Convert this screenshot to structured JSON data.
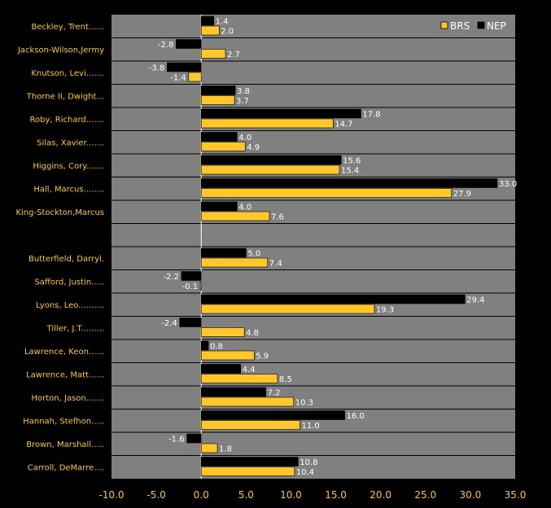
{
  "chart_data": {
    "type": "bar",
    "orientation": "horizontal",
    "categories": [
      "Beckley, Trent......",
      "Jackson-Wilson,Jermy",
      "Knutson, Levi.......",
      "Thorne II, Dwight...",
      "Roby, Richard.......",
      "Silas, Xavier.......",
      "Higgins, Cory.......",
      "Hall, Marcus........",
      "King-Stockton,Marcus",
      "",
      "Butterfield, Darryl.",
      "Safford, Justin.....",
      "Lyons, Leo..........",
      "Tiller, J.T.........",
      "Lawrence, Keon......",
      "Lawrence, Matt......",
      "Horton, Jason.......",
      "Hannah, Stefhon.....",
      "Brown, Marshall.....",
      "Carroll, DeMarre...."
    ],
    "series": [
      {
        "name": "NEP",
        "color": "#000000",
        "values": [
          1.4,
          -2.8,
          -3.8,
          3.8,
          17.8,
          4.0,
          15.6,
          33.0,
          4.0,
          null,
          5.0,
          -2.2,
          29.4,
          -2.4,
          0.8,
          4.4,
          7.2,
          16.0,
          -1.6,
          10.8
        ],
        "labels": [
          "1.4",
          "-2.8",
          "-3.8",
          "3.8",
          "17.8",
          "4.0",
          "15.6",
          "33.0",
          "4.0",
          "",
          "5.0",
          "-2.2",
          "29.4",
          "-2.4",
          "0.8",
          "4.4",
          "7.2",
          "16.0",
          "-1.6",
          "10.8"
        ]
      },
      {
        "name": "BRS",
        "color": "#FFC72C",
        "values": [
          2.0,
          2.7,
          -1.4,
          3.7,
          14.7,
          4.9,
          15.4,
          27.9,
          7.6,
          null,
          7.4,
          -0.1,
          19.3,
          4.8,
          5.9,
          8.5,
          10.3,
          11.0,
          1.8,
          10.4
        ],
        "labels": [
          "2.0",
          "2.7",
          "-1.4",
          "3.7",
          "14.7",
          "4.9",
          "15.4",
          "27.9",
          "7.6",
          "",
          "7.4",
          "-0.1",
          "19.3",
          "4.8",
          "5.9",
          "8.5",
          "10.3",
          "11.0",
          "1.8",
          "10.4"
        ]
      }
    ],
    "xlim": [
      -10.0,
      35.0
    ],
    "xticks": [
      "-10.0",
      "-5.0",
      "0.0",
      "5.0",
      "10.0",
      "15.0",
      "20.0",
      "25.0",
      "30.0",
      "35.0"
    ],
    "legend": {
      "placement": "top-right",
      "entries": [
        "BRS",
        "NEP"
      ]
    },
    "grid": true,
    "colors": {
      "background": "#000000",
      "plot": "#808080",
      "label_text": "#FFC72C",
      "value_text": "#FFFFFF",
      "grid": "#000000",
      "zero_line": "#FFFFFF"
    }
  }
}
